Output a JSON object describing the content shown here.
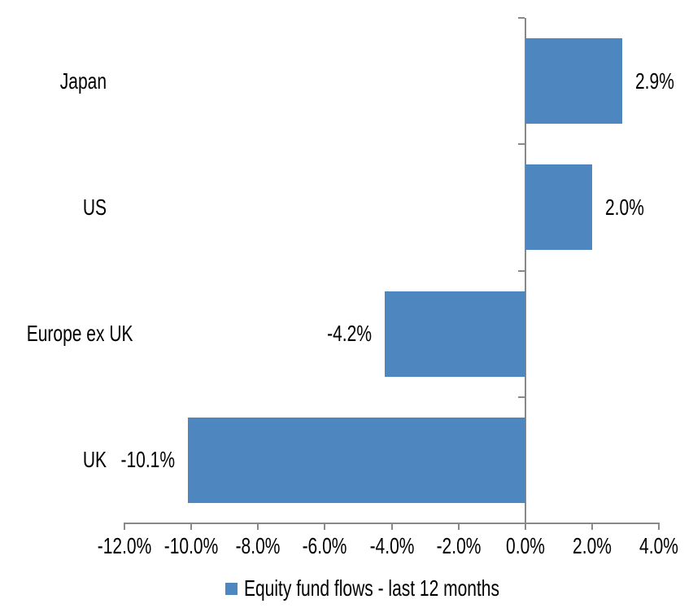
{
  "chart_data": {
    "type": "bar",
    "orientation": "horizontal",
    "categories": [
      "Japan",
      "US",
      "Europe ex UK",
      "UK"
    ],
    "series": [
      {
        "name": "Equity fund flows - last 12 months",
        "values": [
          2.9,
          2.0,
          -4.2,
          -10.1
        ],
        "labels": [
          "2.9%",
          "2.0%",
          "-4.2%",
          "-10.1%"
        ],
        "color": "#4E87BF"
      }
    ],
    "legend": "Equity fund flows - last 12 months",
    "legend_position": "bottom",
    "xlim": [
      -12,
      4
    ],
    "x_ticks": [
      {
        "value": -12,
        "label": "-12.0%"
      },
      {
        "value": -10,
        "label": "-10.0%"
      },
      {
        "value": -8,
        "label": "-8.0%"
      },
      {
        "value": -6,
        "label": "-6.0%"
      },
      {
        "value": -4,
        "label": "-4.0%"
      },
      {
        "value": -2,
        "label": "-2.0%"
      },
      {
        "value": 0,
        "label": "0.0%"
      },
      {
        "value": 2,
        "label": "2.0%"
      },
      {
        "value": 4,
        "label": "4.0%"
      }
    ],
    "grid": false,
    "axis_color": "#898989",
    "text_color": "#000000",
    "background": "#FFFFFF"
  }
}
